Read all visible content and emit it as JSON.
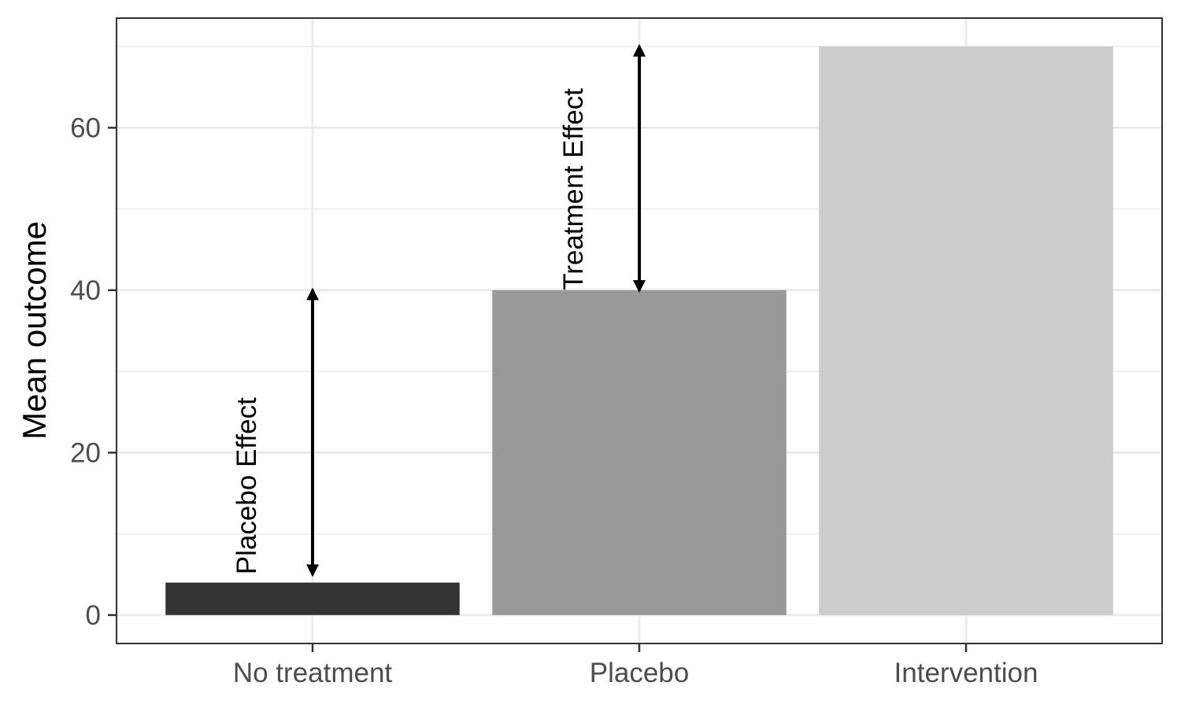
{
  "chart_data": {
    "type": "bar",
    "categories": [
      "No treatment",
      "Placebo",
      "Intervention"
    ],
    "values": [
      4,
      40,
      70
    ],
    "bar_colors": [
      "#333333",
      "#999999",
      "#cccccc"
    ],
    "title": "",
    "xlabel": "",
    "ylabel": "Mean outcome",
    "ylim": [
      -3.5,
      73.5
    ],
    "yticks": [
      0,
      20,
      40,
      60
    ],
    "grid": true,
    "annotations": [
      {
        "label": "Placebo Effect",
        "category": "No treatment",
        "from": 5,
        "to": 40
      },
      {
        "label": "Treatment Effect",
        "category": "Placebo",
        "from": 40,
        "to": 70
      }
    ]
  }
}
